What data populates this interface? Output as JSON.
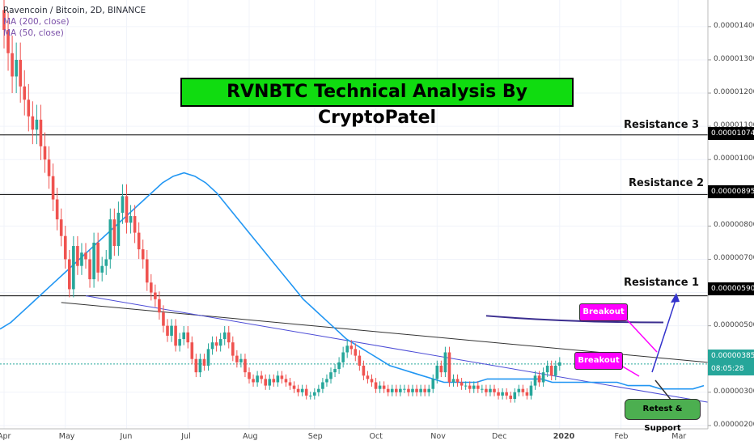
{
  "header": {
    "symbol_line": "Ravencoin / Bitcoin, 2D, BINANCE",
    "ma1": "MA (200, close)",
    "ma2": "MA (50, close)"
  },
  "title": "RVNBTC Technical Analysis By CryptoPatel",
  "resistances": [
    {
      "label": "Resistance 3",
      "price": 1.074e-05,
      "badge": "0.00001074"
    },
    {
      "label": "Resistance 2",
      "price": 8.95e-06,
      "badge": "0.00000895"
    },
    {
      "label": "Resistance 1",
      "price": 5.9e-06,
      "badge": "0.00000590"
    }
  ],
  "current": {
    "price": 3.85e-06,
    "badge": "0.00000385",
    "timer": "08:05:28"
  },
  "annotations": {
    "breakout_upper": "Breakout",
    "breakout_lower": "Breakout",
    "retest": "Retest & Support"
  },
  "colors": {
    "up": "#26a69a",
    "down": "#ef5350",
    "ma50": "#2196f3",
    "title_bg": "#10dc10",
    "callout": "#ff00ff",
    "retest_bg": "#4caf50"
  },
  "chart_data": {
    "type": "candlestick",
    "ylim": [
      1.9e-06,
      1.48e-05
    ],
    "y_ticks": [
      "0.00001400",
      "0.00001300",
      "0.00001200",
      "0.00001100",
      "0.00001000",
      "0.00000900",
      "0.00000800",
      "0.00000700",
      "0.00000600",
      "0.00000500",
      "0.00000400",
      "0.00000300",
      "0.00000200"
    ],
    "y_tick_values": [
      1.4e-05,
      1.3e-05,
      1.2e-05,
      1.1e-05,
      1e-05,
      9e-06,
      8e-06,
      7e-06,
      6e-06,
      5e-06,
      4e-06,
      3e-06,
      2e-06
    ],
    "x_labels": [
      "Apr",
      "May",
      "Jun",
      "Jul",
      "Aug",
      "Sep",
      "Oct",
      "Nov",
      "Dec",
      "2020",
      "Feb",
      "Mar"
    ],
    "x_label_index": [
      0,
      15,
      30,
      45,
      60,
      76,
      91,
      106,
      121,
      136,
      151,
      165
    ],
    "close": [
      1.39e-05,
      1.32e-05,
      1.25e-05,
      1.3e-05,
      1.22e-05,
      1.18e-05,
      1.13e-05,
      1.09e-05,
      1.12e-05,
      1.04e-05,
      1e-05,
      9.5e-06,
      8.8e-06,
      8.2e-06,
      7.7e-06,
      7e-06,
      6.1e-06,
      7.4e-06,
      6.8e-06,
      7.2e-06,
      7e-06,
      6.4e-06,
      7.5e-06,
      6.6e-06,
      6.8e-06,
      7e-06,
      8.2e-06,
      7.4e-06,
      8.4e-06,
      8.9e-06,
      8.1e-06,
      8.3e-06,
      7.8e-06,
      7.3e-06,
      7e-06,
      6.3e-06,
      6e-06,
      5.8e-06,
      5.4e-06,
      5e-06,
      4.7e-06,
      5e-06,
      4.4e-06,
      4.6e-06,
      4.8e-06,
      4.5e-06,
      4e-06,
      3.6e-06,
      4e-06,
      3.8e-06,
      4.3e-06,
      4.5e-06,
      4.4e-06,
      4.6e-06,
      4.8e-06,
      4.5e-06,
      4.1e-06,
      3.9e-06,
      4e-06,
      3.6e-06,
      3.4e-06,
      3.3e-06,
      3.5e-06,
      3.4e-06,
      3.2e-06,
      3.4e-06,
      3.3e-06,
      3.5e-06,
      3.4e-06,
      3.3e-06,
      3.2e-06,
      3.1e-06,
      3e-06,
      3.1e-06,
      2.9e-06,
      2.9e-06,
      3e-06,
      3.1e-06,
      3.3e-06,
      3.4e-06,
      3.6e-06,
      3.7e-06,
      3.9e-06,
      4.2e-06,
      4.4e-06,
      4.3e-06,
      4.1e-06,
      3.8e-06,
      3.5e-06,
      3.4e-06,
      3.3e-06,
      3.1e-06,
      3.2e-06,
      3.1e-06,
      3e-06,
      3.1e-06,
      3e-06,
      3.1e-06,
      3.1e-06,
      3e-06,
      3.1e-06,
      3e-06,
      3.1e-06,
      3e-06,
      3.1e-06,
      3.4e-06,
      3.8e-06,
      3.6e-06,
      4.2e-06,
      3.3e-06,
      3.4e-06,
      3.3e-06,
      3.2e-06,
      3.2e-06,
      3.1e-06,
      3.2e-06,
      3.1e-06,
      3.1e-06,
      3e-06,
      3.1e-06,
      3e-06,
      2.9e-06,
      3e-06,
      2.9e-06,
      2.8e-06,
      3e-06,
      3.1e-06,
      3e-06,
      2.9e-06,
      3.2e-06,
      3.5e-06,
      3.3e-06,
      3.6e-06,
      3.8e-06,
      3.5e-06,
      3.8e-06,
      3.9e-06
    ],
    "ma50": [
      4.9e-06,
      5.1e-06,
      5.4e-06,
      5.7e-06,
      6e-06,
      6.3e-06,
      6.6e-06,
      6.9e-06,
      7.2e-06,
      7.5e-06,
      7.8e-06,
      8.1e-06,
      8.4e-06,
      8.7e-06,
      9e-06,
      9.3e-06,
      9.5e-06,
      9.6e-06,
      9.5e-06,
      9.3e-06,
      9e-06,
      8.6e-06,
      8.2e-06,
      7.8e-06,
      7.4e-06,
      7e-06,
      6.6e-06,
      6.2e-06,
      5.8e-06,
      5.5e-06,
      5.2e-06,
      4.9e-06,
      4.6e-06,
      4.4e-06,
      4.2e-06,
      4e-06,
      3.8e-06,
      3.7e-06,
      3.6e-06,
      3.5e-06,
      3.4e-06,
      3.3e-06,
      3.3e-06,
      3.3e-06,
      3.3e-06,
      3.4e-06,
      3.4e-06,
      3.4e-06,
      3.4e-06,
      3.4e-06,
      3.4e-06,
      3.3e-06,
      3.3e-06,
      3.3e-06,
      3.3e-06,
      3.3e-06,
      3.3e-06,
      3.3e-06,
      3.2e-06,
      3.2e-06,
      3.2e-06,
      3.1e-06,
      3.1e-06,
      3.1e-06,
      3.1e-06,
      3.2e-06
    ],
    "lines": {
      "black_trend": {
        "from": [
          14,
          5.7e-06
        ],
        "to": [
          170,
          3.9e-06
        ]
      },
      "blue_trend": {
        "from": [
          20,
          5.9e-06
        ],
        "to": [
          170,
          2.7e-06
        ]
      },
      "purple_top": {
        "from": [
          118,
          5.3e-06
        ],
        "to": [
          160,
          5.1e-06
        ]
      }
    }
  }
}
